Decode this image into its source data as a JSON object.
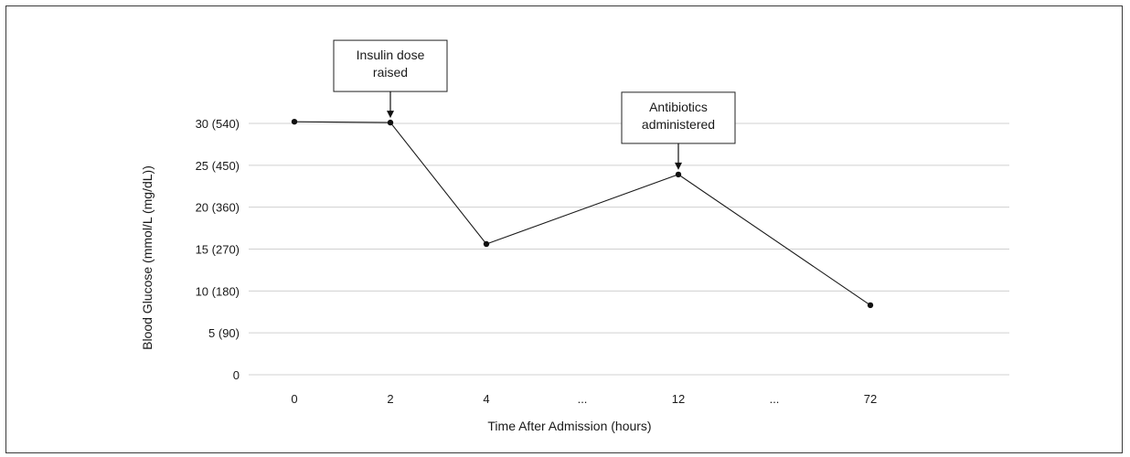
{
  "chart_data": {
    "type": "line",
    "xlabel": "Time After Admission  (hours)",
    "ylabel": "Blood Glucose (mmol/L (mg/dL))",
    "ylim": [
      0,
      30
    ],
    "yticks": [
      {
        "value": 0,
        "label": "0"
      },
      {
        "value": 5,
        "label": "5 (90)"
      },
      {
        "value": 10,
        "label": "10 (180)"
      },
      {
        "value": 15,
        "label": "15 (270)"
      },
      {
        "value": 20,
        "label": "20 (360)"
      },
      {
        "value": 25,
        "label": "25 (450)"
      },
      {
        "value": 30,
        "label": "30 (540)"
      }
    ],
    "categories": [
      "0",
      "2",
      "4",
      "...",
      "12",
      "...",
      "72"
    ],
    "series": [
      {
        "points": [
          {
            "x": "0",
            "y": 30.2
          },
          {
            "x": "2",
            "y": 30.1
          },
          {
            "x": "4",
            "y": 15.6
          },
          {
            "x": "12",
            "y": 23.9
          },
          {
            "x": "72",
            "y": 8.3
          }
        ]
      }
    ],
    "annotations": [
      {
        "lines": [
          "Insulin dose",
          "raised"
        ],
        "x": "2",
        "y": 30.1
      },
      {
        "lines": [
          "Antibiotics",
          "administered"
        ],
        "x": "12",
        "y": 23.9
      }
    ],
    "grid": true,
    "colors": {
      "line": "#1a1a1a",
      "grid": "#d0d0d0"
    }
  }
}
